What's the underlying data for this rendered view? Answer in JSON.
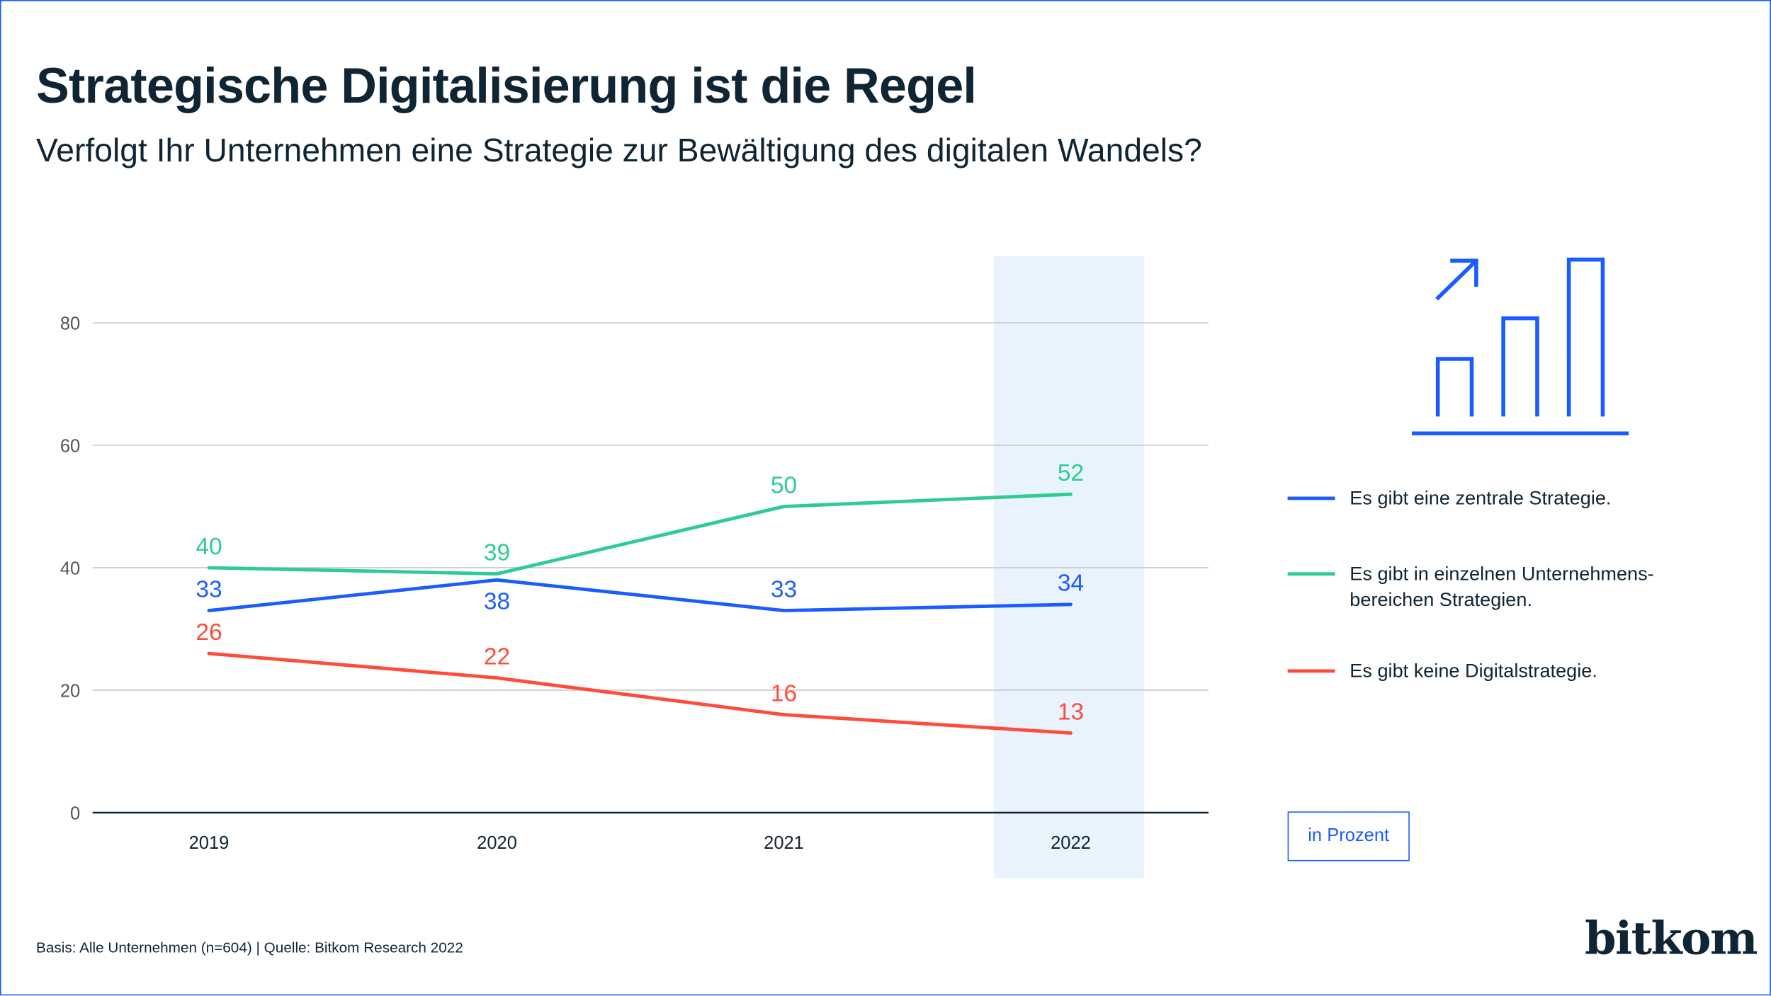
{
  "title": "Strategische Digitalisierung ist die Regel",
  "subtitle": "Verfolgt Ihr Unternehmen eine Strategie zur Bewältigung des digitalen Wandels?",
  "unit_label": "in Prozent",
  "footer": "Basis: Alle Unternehmen (n=604) | Quelle: Bitkom Research 2022",
  "logo_text": "bitkom",
  "icon": "bar-chart-growth-icon",
  "colors": {
    "text": "#0f2533",
    "highlight": "#e8f3fe",
    "grid": "#c8c8c8"
  },
  "chart_data": {
    "type": "line",
    "title": "",
    "xlabel": "",
    "ylabel": "",
    "categories": [
      "2019",
      "2020",
      "2021",
      "2022"
    ],
    "highlight_category": "2022",
    "ylim": [
      0,
      80
    ],
    "yticks": [
      0,
      20,
      40,
      60,
      80
    ],
    "grid": true,
    "legend_placement": "right",
    "series": [
      {
        "name": "Es gibt eine zentrale Strategie.",
        "color": "#1a5cff",
        "values": [
          33,
          38,
          33,
          34
        ]
      },
      {
        "name": "Es gibt in einzelnen Unternehmens-bereichen Strategien.",
        "color": "#2ecc8f",
        "values": [
          40,
          39,
          50,
          52
        ]
      },
      {
        "name": "Es gibt keine Digitalstrategie.",
        "color": "#ff4b3a",
        "values": [
          26,
          22,
          16,
          13
        ]
      }
    ]
  }
}
